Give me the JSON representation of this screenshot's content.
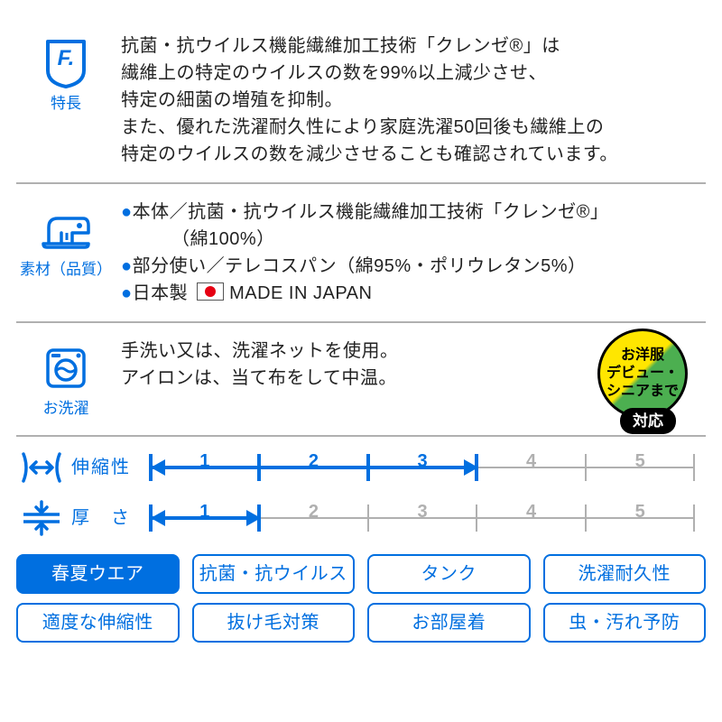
{
  "colors": {
    "blue": "#006fe0",
    "grey": "#b0b0b0",
    "black": "#222",
    "red": "#e60012",
    "yellow": "#ffe600",
    "green": "#4caf50"
  },
  "sections": {
    "features": {
      "icon_label": "特長",
      "lines": [
        "抗菌・抗ウイルス機能繊維加工技術「クレンゼ®」は",
        "繊維上の特定のウイルスの数を99%以上減少させ、",
        "特定の細菌の増殖を抑制。",
        "また、優れた洗濯耐久性により家庭洗濯50回後も繊維上の",
        "特定のウイルスの数を減少させることも確認されています。"
      ]
    },
    "material": {
      "icon_label": "素材（品質）",
      "l1": "本体／抗菌・抗ウイルス機能繊維加工技術「クレンゼ®」",
      "l1b": "（綿100%）",
      "l2": "部分使い／テレコスパン（綿95%・ポリウレタン5%）",
      "l3a": "日本製",
      "l3b": "MADE IN JAPAN"
    },
    "wash": {
      "icon_label": "お洗濯",
      "l1": "手洗い又は、洗濯ネットを使用。",
      "l2": "アイロンは、当て布をして中温。"
    }
  },
  "badge": {
    "line1": "お洋服",
    "line2": "デビュー・",
    "line3": "シニアまで",
    "tail": "対応"
  },
  "scales": {
    "stretch": {
      "label": "伸縮性",
      "max": 5,
      "value": 3,
      "ticks": [
        1,
        2,
        3,
        4,
        5
      ]
    },
    "thickness": {
      "label": "厚　さ",
      "max": 5,
      "value": 1,
      "ticks": [
        1,
        2,
        3,
        4,
        5
      ]
    }
  },
  "tags": [
    {
      "text": "春夏ウエア",
      "filled": true
    },
    {
      "text": "抗菌・抗ウイルス",
      "filled": false
    },
    {
      "text": "タンク",
      "filled": false
    },
    {
      "text": "洗濯耐久性",
      "filled": false
    },
    {
      "text": "適度な伸縮性",
      "filled": false
    },
    {
      "text": "抜け毛対策",
      "filled": false
    },
    {
      "text": "お部屋着",
      "filled": false
    },
    {
      "text": "虫・汚れ予防",
      "filled": false
    }
  ]
}
